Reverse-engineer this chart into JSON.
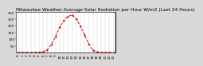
{
  "title": "Milwaukee Weather Average Solar Radiation per Hour W/m2 (Last 24 Hours)",
  "hours": [
    0,
    1,
    2,
    3,
    4,
    5,
    6,
    7,
    8,
    9,
    10,
    11,
    12,
    13,
    14,
    15,
    16,
    17,
    18,
    19,
    20,
    21,
    22,
    23
  ],
  "values": [
    0,
    0,
    0,
    0,
    0,
    2,
    5,
    20,
    60,
    120,
    190,
    240,
    270,
    280,
    250,
    195,
    130,
    65,
    15,
    3,
    0,
    0,
    0,
    0
  ],
  "line_color": "#cc0000",
  "bg_color": "#ffffff",
  "grid_color": "#999999",
  "text_color": "#000000",
  "ylim": [
    0,
    300
  ],
  "yticks": [
    50,
    100,
    150,
    200,
    250,
    300
  ],
  "ytick_labels": [
    "50",
    "100",
    "150",
    "200",
    "250",
    "300"
  ],
  "title_fontsize": 4.2,
  "tick_fontsize": 3.2,
  "fig_bg": "#d8d8d8"
}
